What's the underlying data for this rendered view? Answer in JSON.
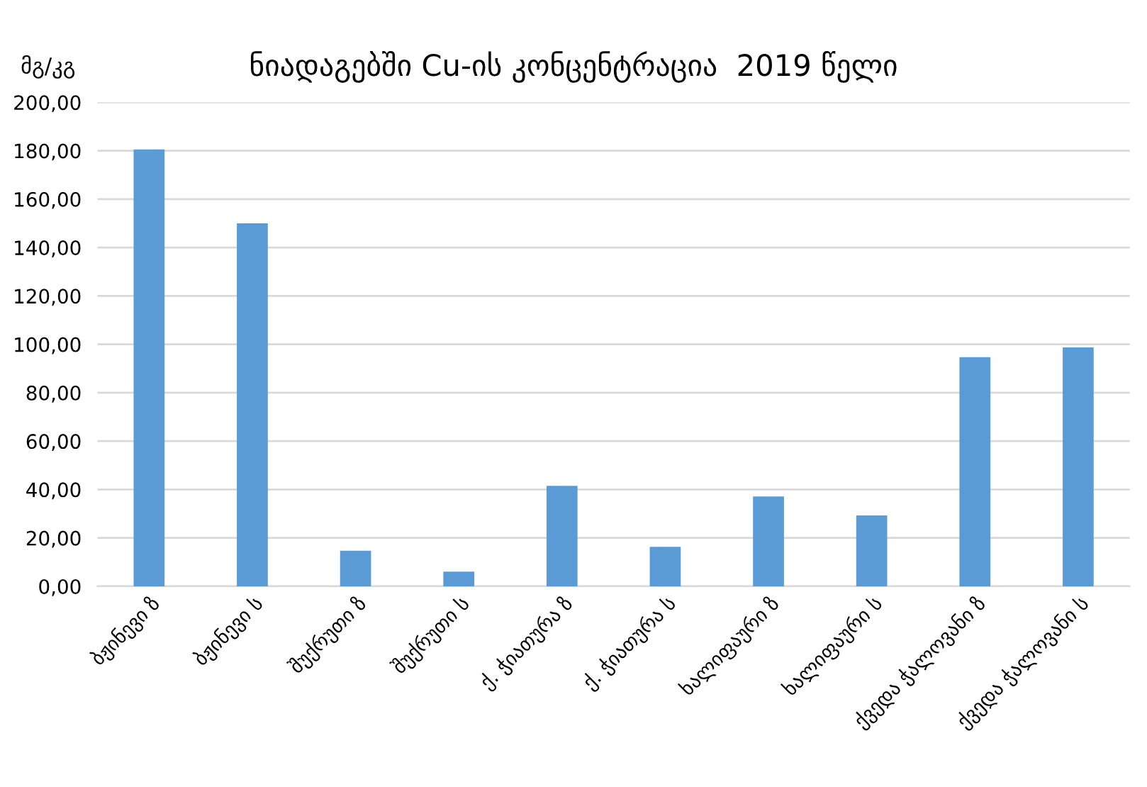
{
  "chart_data": {
    "type": "bar",
    "title": "ნიადაგებში Cu-ის კონცენტრაცია  2019 წელი",
    "ylabel": "მგ/კგ",
    "categories": [
      "ბჟინევი ზ",
      "ბჟინევი ს",
      "შუქრუთი ზ",
      "შუქრუთი ს",
      "ქ. ჭიათურა ზ",
      "ქ. ჭიათურა ს",
      "ხალიფაური ზ",
      "ხალიფაური ს",
      "ქვედა ჭალოვანი ზ",
      "ქვედა ჭალოვანი ს"
    ],
    "values": [
      180.5,
      150,
      14.7,
      6.1,
      41.5,
      16.3,
      37.1,
      29.3,
      94.7,
      98.7
    ],
    "color": "#5b9bd5",
    "ylim": [
      0,
      200
    ],
    "yticks": [
      {
        "value": 0,
        "label": "0,00"
      },
      {
        "value": 20,
        "label": "20,00"
      },
      {
        "value": 40,
        "label": "40,00"
      },
      {
        "value": 60,
        "label": "60,00"
      },
      {
        "value": 80,
        "label": "80,00"
      },
      {
        "value": 100,
        "label": "100,00"
      },
      {
        "value": 120,
        "label": "120,00"
      },
      {
        "value": 140,
        "label": "140,00"
      },
      {
        "value": 160,
        "label": "160,00"
      },
      {
        "value": 180,
        "label": "180,00"
      },
      {
        "value": 200,
        "label": "200,00"
      }
    ],
    "grid": "y"
  }
}
